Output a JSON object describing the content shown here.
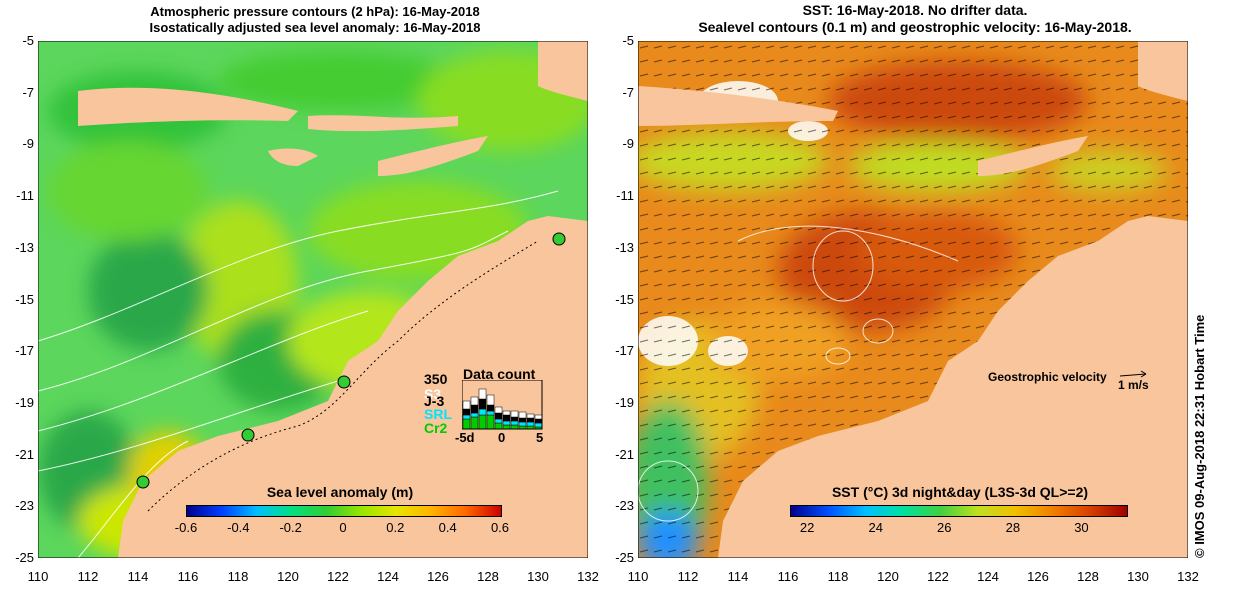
{
  "left_panel": {
    "title_line1": "Atmospheric pressure contours (2 hPa): 16-May-2018",
    "title_line2": "Isostatically adjusted sea level anomaly: 16-May-2018",
    "y_ticks": [
      "-5",
      "-7",
      "-9",
      "-11",
      "-13",
      "-15",
      "-17",
      "-19",
      "-21",
      "-23",
      "-25"
    ],
    "x_ticks": [
      "110",
      "112",
      "114",
      "116",
      "118",
      "120",
      "122",
      "124",
      "126",
      "128",
      "130",
      "132"
    ],
    "colorbar": {
      "title": "Sea level anomaly (m)",
      "ticks": [
        "-0.6",
        "-0.4",
        "-0.2",
        "0",
        "0.2",
        "0.4",
        "0.6"
      ],
      "range": [
        -0.6,
        0.6
      ]
    },
    "data_count": {
      "title": "Data count",
      "max_label": "350",
      "legend": [
        "S3",
        "J-3",
        "SRL",
        "Cr2"
      ],
      "legend_colors": [
        "#ffffff",
        "#000000",
        "#00e5ff",
        "#00cc00"
      ],
      "x_ticks": [
        "-5d",
        "0",
        "5"
      ]
    },
    "tide_gauges": [
      "gauge-1",
      "gauge-2",
      "gauge-3",
      "gauge-4"
    ]
  },
  "right_panel": {
    "title_line1": "SST: 16-May-2018. No drifter data.",
    "title_line2": "Sealevel contours (0.1 m) and geostrophic velocity: 16-May-2018.",
    "y_ticks": [
      "-5",
      "-7",
      "-9",
      "-11",
      "-13",
      "-15",
      "-17",
      "-19",
      "-21",
      "-23",
      "-25"
    ],
    "x_ticks": [
      "110",
      "112",
      "114",
      "116",
      "118",
      "120",
      "122",
      "124",
      "126",
      "128",
      "130",
      "132"
    ],
    "colorbar": {
      "title": "SST (°C) 3d night&day (L3S-3d QL>=2)",
      "ticks": [
        "22",
        "24",
        "26",
        "28",
        "30"
      ],
      "range": [
        22,
        31
      ]
    },
    "velocity_legend": {
      "label": "Geostrophic velocity",
      "unit": "1 m/s"
    }
  },
  "credit": "© IMOS 09-Aug-2018 22:31 Hobart Time",
  "colors": {
    "land": "#f9c59c",
    "sla_colormap": [
      "#00008f",
      "#0040ff",
      "#00bfff",
      "#00e080",
      "#33cc33",
      "#99e600",
      "#e6e600",
      "#ffb300",
      "#ff6600",
      "#cc0000"
    ],
    "sst_colormap": [
      "#00008f",
      "#0050ff",
      "#00c0ff",
      "#00e0a0",
      "#40d040",
      "#c0e020",
      "#f0c000",
      "#f08000",
      "#d84000",
      "#a00000"
    ],
    "contour": "#ffffff",
    "coastline_trace": "#40e0e0"
  }
}
